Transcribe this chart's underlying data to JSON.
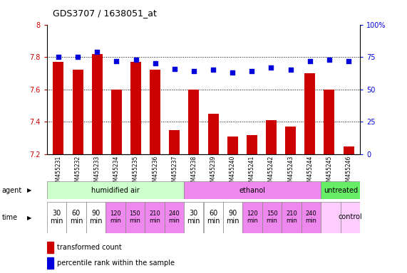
{
  "title": "GDS3707 / 1638051_at",
  "samples": [
    "GSM455231",
    "GSM455232",
    "GSM455233",
    "GSM455234",
    "GSM455235",
    "GSM455236",
    "GSM455237",
    "GSM455238",
    "GSM455239",
    "GSM455240",
    "GSM455241",
    "GSM455242",
    "GSM455243",
    "GSM455244",
    "GSM455245",
    "GSM455246"
  ],
  "bar_values": [
    7.77,
    7.72,
    7.82,
    7.6,
    7.77,
    7.72,
    7.35,
    7.6,
    7.45,
    7.31,
    7.32,
    7.41,
    7.37,
    7.7,
    7.6,
    7.25
  ],
  "percentile_values": [
    75,
    75,
    79,
    72,
    73,
    70,
    66,
    64,
    65,
    63,
    64,
    67,
    65,
    72,
    73,
    72
  ],
  "bar_color": "#cc0000",
  "percentile_color": "#0000dd",
  "left_tick_color": "#cc0000",
  "ylim_left": [
    7.2,
    8.0
  ],
  "ylim_right": [
    0,
    100
  ],
  "yticks_left": [
    7.2,
    7.4,
    7.6,
    7.8,
    8.0
  ],
  "yticks_right": [
    0,
    25,
    50,
    75,
    100
  ],
  "ytick_labels_left": [
    "7.2",
    "7.4",
    "7.6",
    "7.8",
    "8"
  ],
  "ytick_labels_right": [
    "0",
    "25",
    "50",
    "75",
    "100%"
  ],
  "dotted_values": [
    7.4,
    7.6,
    7.8
  ],
  "bar_width": 0.55,
  "bg_color": "#ffffff",
  "plot_bg": "#ffffff",
  "agent_groups": [
    {
      "label": "humidified air",
      "start": 0,
      "end": 6,
      "color": "#ccffcc"
    },
    {
      "label": "ethanol",
      "start": 7,
      "end": 13,
      "color": "#ee88ee"
    },
    {
      "label": "untreated",
      "start": 14,
      "end": 15,
      "color": "#66ee66"
    }
  ],
  "time_labels": [
    "30\nmin",
    "60\nmin",
    "90\nmin",
    "120\nmin",
    "150\nmin",
    "210\nmin",
    "240\nmin",
    "30\nmin",
    "60\nmin",
    "90\nmin",
    "120\nmin",
    "150\nmin",
    "210\nmin",
    "240\nmin",
    "",
    "control"
  ],
  "time_cell_colors": [
    "#ffffff",
    "#ffffff",
    "#ffffff",
    "#ee88ee",
    "#ee88ee",
    "#ee88ee",
    "#ee88ee",
    "#ffffff",
    "#ffffff",
    "#ffffff",
    "#ee88ee",
    "#ee88ee",
    "#ee88ee",
    "#ee88ee",
    "#ffccff",
    "#ffccff"
  ],
  "time_font_sizes": [
    7,
    7,
    7,
    6,
    6,
    6,
    6,
    7,
    7,
    7,
    6,
    6,
    6,
    6,
    7,
    7
  ]
}
